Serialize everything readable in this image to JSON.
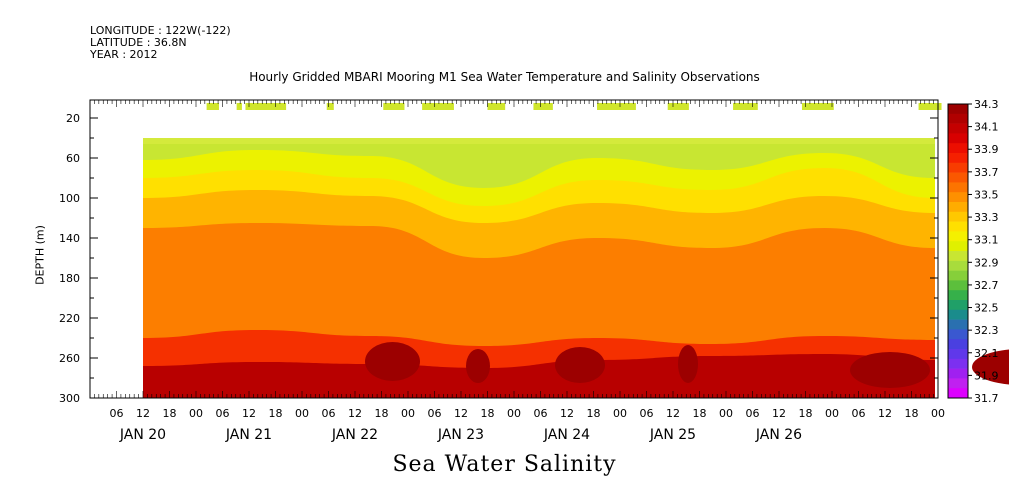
{
  "header": {
    "longitude": "LONGITUDE : 122W(-122)",
    "latitude": "LATITUDE : 36.8N",
    "year": "YEAR : 2012"
  },
  "title": "Hourly Gridded MBARI Mooring M1 Sea Water Temperature and Salinity Observations",
  "bottom_title": "Sea Water Salinity",
  "chart_data": {
    "type": "heatmap",
    "title": "Hourly Gridded MBARI Mooring M1 Sea Water Temperature and Salinity Observations",
    "xlabel": "",
    "ylabel": "DEPTH (m)",
    "ylim": [
      300,
      2
    ],
    "y_ticks": [
      20,
      60,
      100,
      140,
      180,
      220,
      260,
      300
    ],
    "x_hour_labels": [
      "06",
      "12",
      "18",
      "00",
      "06",
      "12",
      "18",
      "00",
      "06",
      "12",
      "18",
      "00",
      "06",
      "12",
      "18",
      "00",
      "06",
      "12",
      "18",
      "00",
      "06",
      "12",
      "18",
      "00",
      "06",
      "12",
      "18",
      "00",
      "06",
      "12",
      "18",
      "00"
    ],
    "x_day_labels": [
      "JAN 20",
      "JAN 21",
      "JAN 22",
      "JAN 23",
      "JAN 24",
      "JAN 25",
      "JAN 26"
    ],
    "colorbar": {
      "min": 31.7,
      "max": 34.3,
      "step": 0.1,
      "labels": [
        "34.3",
        "34.1",
        "33.9",
        "33.7",
        "33.5",
        "33.3",
        "33.1",
        "32.9",
        "32.7",
        "32.5",
        "32.3",
        "32.1",
        "31.9",
        "31.7"
      ],
      "colors": [
        "#9c0000",
        "#b00000",
        "#c40000",
        "#d80000",
        "#ec0e00",
        "#f52000",
        "#f83c00",
        "#fa5800",
        "#fc7400",
        "#fe9000",
        "#ffac00",
        "#ffc800",
        "#ffe000",
        "#f4f000",
        "#e0f000",
        "#c8e632",
        "#a8dc3c",
        "#86cf3a",
        "#5cbf3c",
        "#36b04a",
        "#20a068",
        "#1a8c8c",
        "#2a70b0",
        "#3a58d0",
        "#4a40e0",
        "#6038ea",
        "#7c30f0",
        "#a020f0",
        "#c020f0",
        "#dd00ff"
      ]
    },
    "data_start": "JAN 20 12:00",
    "depth_levels_m": [
      40,
      60,
      80,
      100,
      120,
      140,
      160,
      180,
      200,
      220,
      240,
      260,
      280,
      300
    ],
    "series": [
      {
        "time_hours": [
          0,
          12,
          24,
          36,
          48,
          60,
          72,
          84,
          96,
          108,
          120,
          132,
          144,
          156,
          168
        ],
        "surface_band_33_1": [
          [
            15,
            2
          ],
          [
            36,
            43
          ],
          [
            53,
            56
          ],
          [
            58,
            81
          ],
          [
            104,
            108
          ],
          [
            109,
            109
          ],
          [
            136,
            148
          ],
          [
            158,
            176
          ],
          [
            195,
            205
          ],
          [
            221,
            232
          ],
          [
            257,
            279
          ],
          [
            297,
            309
          ],
          [
            334,
            348
          ],
          [
            373,
            391
          ],
          [
            439,
            452
          ]
        ],
        "contours": [
          {
            "level": 33.3,
            "depth": [
              62,
              52,
              58,
              90,
              60,
              72,
              55,
              80,
              100,
              62,
              57,
              55,
              55,
              55,
              50
            ]
          },
          {
            "level": 33.5,
            "depth": [
              80,
              72,
              80,
              108,
              82,
              92,
              70,
              100,
              120,
              78,
              74,
              70,
              70,
              70,
              65
            ]
          },
          {
            "level": 33.7,
            "depth": [
              100,
              92,
              98,
              125,
              105,
              115,
              98,
              115,
              140,
              108,
              102,
              100,
              102,
              102,
              95
            ]
          },
          {
            "level": 33.9,
            "depth": [
              130,
              125,
              128,
              160,
              140,
              150,
              130,
              150,
              195,
              140,
              130,
              125,
              130,
              130,
              120
            ]
          },
          {
            "level": 34.1,
            "depth": [
              240,
              232,
              238,
              248,
              240,
              246,
              238,
              242,
              248,
              240,
              238,
              235,
              238,
              238,
              232
            ]
          },
          {
            "level": 34.2,
            "depth": [
              268,
              264,
              266,
              270,
              262,
              258,
              256,
              262,
              270,
              258,
              252,
              248,
              258,
              256,
              252
            ]
          }
        ]
      }
    ]
  }
}
